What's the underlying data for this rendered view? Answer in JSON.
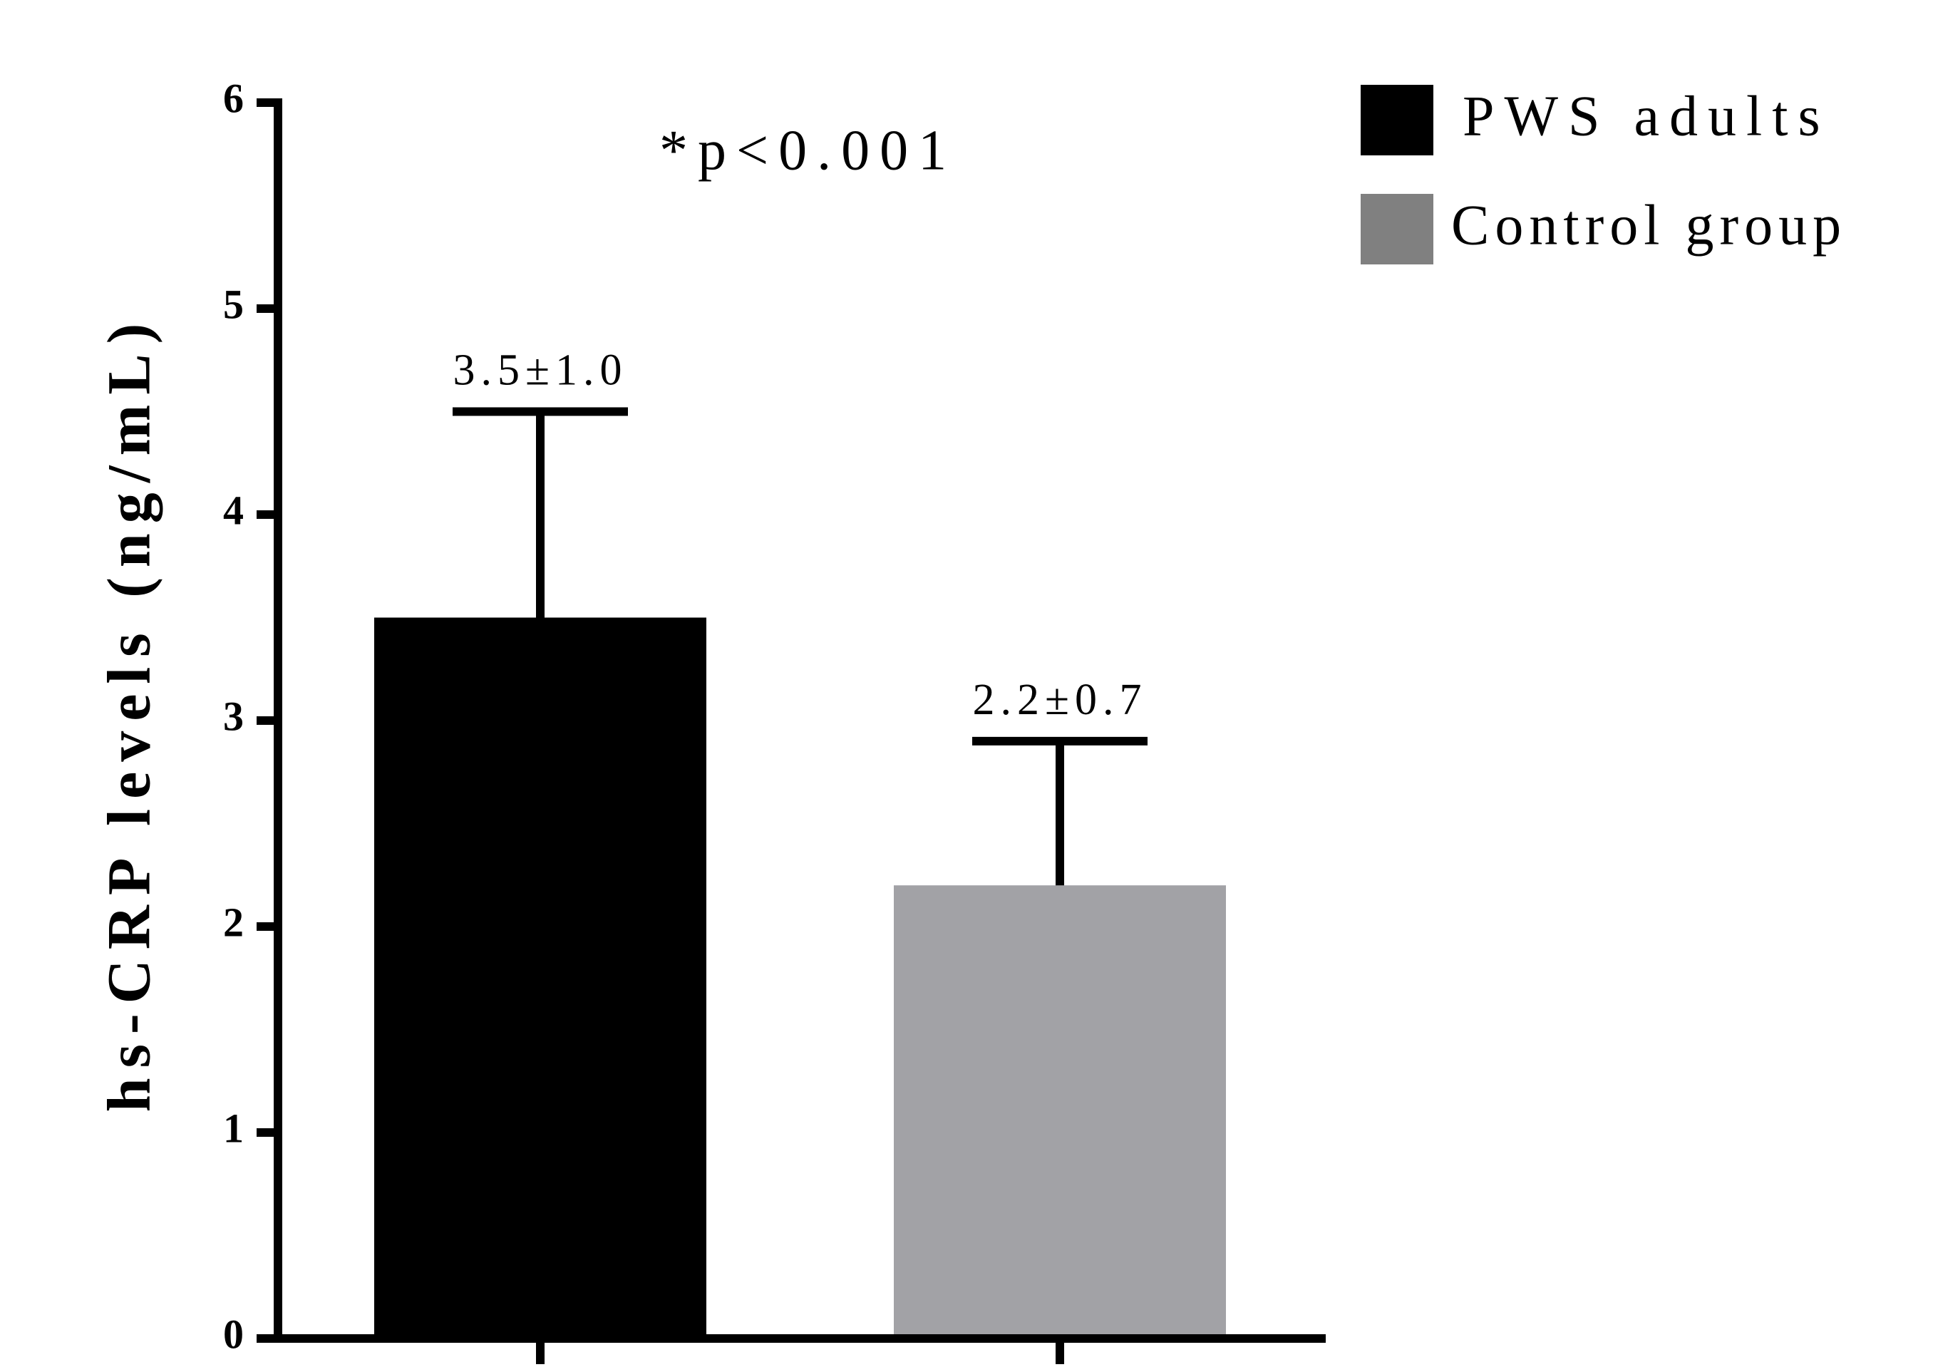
{
  "chart_data": {
    "type": "bar",
    "annotation": "*p<0.001",
    "y_label": "hs-CRP levels (ng/mL)",
    "categories": [
      null,
      null
    ],
    "series": [
      {
        "name": "PWS adults",
        "color": "#000000",
        "values": [
          3.5,
          null
        ],
        "errors": [
          1.0,
          null
        ],
        "value_labels": [
          "3.5±1.0",
          null
        ]
      },
      {
        "name": "Control group",
        "color": "#a2a2a6",
        "values": [
          null,
          2.2
        ],
        "errors": [
          null,
          0.7
        ],
        "value_labels": [
          null,
          "2.2±0.7"
        ]
      }
    ],
    "legend_colors": [
      "#000000",
      "#808080"
    ],
    "ylim": [
      0,
      6
    ],
    "yticks": [
      0,
      1,
      2,
      3,
      4,
      5,
      6
    ],
    "grid": false,
    "legend": "top-right"
  }
}
